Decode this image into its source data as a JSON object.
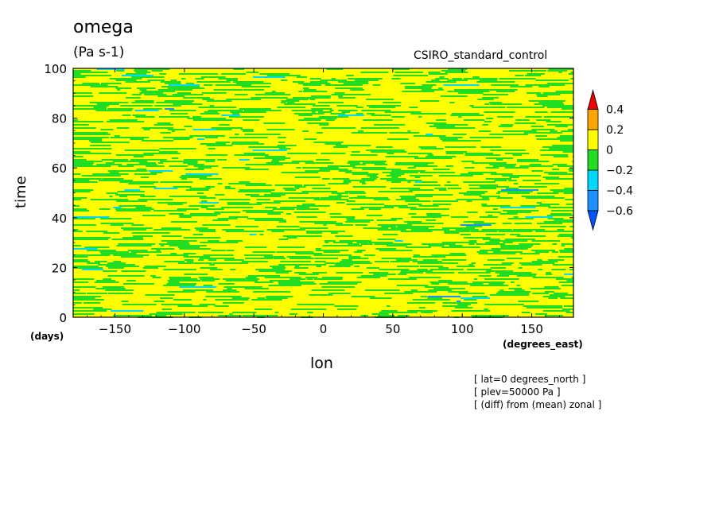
{
  "chart_data": {
    "type": "heatmap",
    "title": "omega",
    "units": "(Pa s-1)",
    "dataset": "CSIRO_standard_control",
    "xlabel": "lon",
    "xunits": "(degrees_east)",
    "ylabel": "time",
    "yunits": "(days)",
    "xlim": [
      -180,
      180
    ],
    "ylim": [
      0,
      100
    ],
    "xticks": [
      -150,
      -100,
      -50,
      0,
      50,
      100,
      150
    ],
    "yticks": [
      0,
      20,
      40,
      60,
      80,
      100
    ],
    "notes": [
      "[ lat=0 degrees_north ]",
      "[ plev=50000 Pa ]",
      "[ (diff) from (mean) zonal ]"
    ],
    "colorbar": {
      "levels": [
        -0.6,
        -0.4,
        -0.2,
        0,
        0.2,
        0.4
      ],
      "colors": [
        "#1e90ff",
        "#00d8ff",
        "#22dd22",
        "#ffff00",
        "#ffa500",
        "#ff0000"
      ],
      "overflow_low": "#0055ff",
      "overflow_high": "#ee0000"
    }
  }
}
